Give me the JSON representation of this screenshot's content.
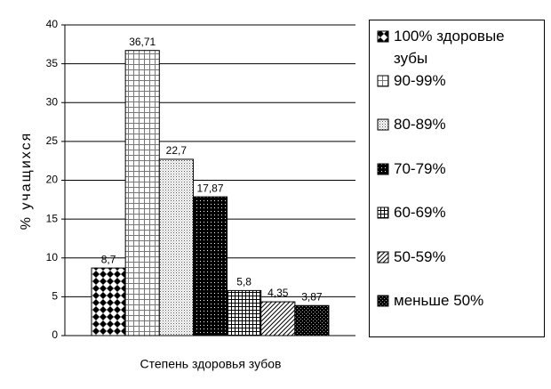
{
  "chart_data": {
    "type": "bar",
    "x_label": "Степень здоровья зубов",
    "y_label": "% учащихся",
    "categories": [
      null
    ],
    "series": [
      {
        "name": "100% здоровые зубы",
        "color": "#000000",
        "values": [
          8.7
        ],
        "value_labels": [
          "8,7"
        ]
      },
      {
        "name": "90-99%",
        "color": "#000000",
        "values": [
          36.71
        ],
        "value_labels": [
          "36,71"
        ]
      },
      {
        "name": "80-89%",
        "color": "#000000",
        "values": [
          22.7
        ],
        "value_labels": [
          "22,7"
        ]
      },
      {
        "name": "70-79%",
        "color": "#000000",
        "values": [
          17.87
        ],
        "value_labels": [
          "17,87"
        ]
      },
      {
        "name": "60-69%",
        "color": "#000000",
        "values": [
          5.8
        ],
        "value_labels": [
          "5,8"
        ]
      },
      {
        "name": "50-59%",
        "color": "#000000",
        "values": [
          4.35
        ],
        "value_labels": [
          "4,35"
        ]
      },
      {
        "name": "меньше 50%",
        "color": "#000000",
        "values": [
          3.87
        ],
        "value_labels": [
          "3,87"
        ]
      }
    ],
    "ylim": [
      0,
      40
    ],
    "yticks": [
      0,
      5,
      10,
      15,
      20,
      25,
      30,
      35,
      40
    ],
    "grid": true,
    "legend": "right"
  }
}
